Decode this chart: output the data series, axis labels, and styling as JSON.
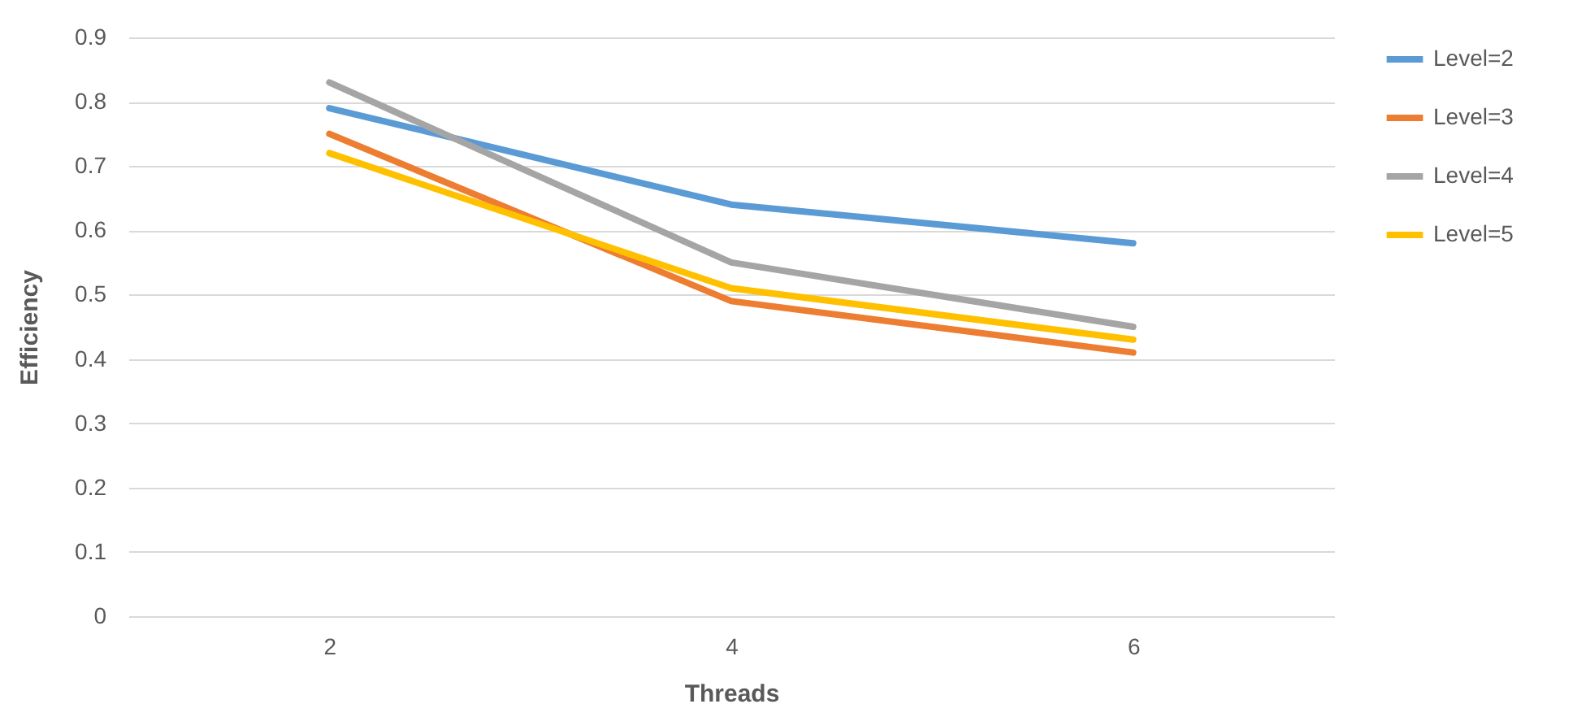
{
  "chart_data": {
    "type": "line",
    "xlabel": "Threads",
    "ylabel": "Efficiency",
    "categories": [
      "2",
      "4",
      "6"
    ],
    "series": [
      {
        "name": "Level=2",
        "color": "#5b9bd5",
        "values": [
          0.79,
          0.64,
          0.58
        ]
      },
      {
        "name": "Level=3",
        "color": "#ed7d31",
        "values": [
          0.75,
          0.49,
          0.41
        ]
      },
      {
        "name": "Level=4",
        "color": "#a5a5a5",
        "values": [
          0.83,
          0.55,
          0.45
        ]
      },
      {
        "name": "Level=5",
        "color": "#ffc000",
        "values": [
          0.72,
          0.51,
          0.43
        ]
      }
    ],
    "ylim": [
      0,
      0.9
    ],
    "yticks": [
      0,
      0.1,
      0.2,
      0.3,
      0.4,
      0.5,
      0.6,
      0.7,
      0.8,
      0.9
    ],
    "grid": "y",
    "legend": "right",
    "line_style": "solid"
  }
}
